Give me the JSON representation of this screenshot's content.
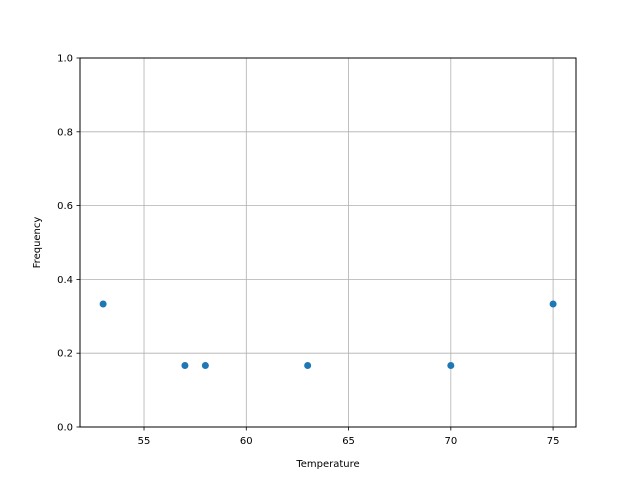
{
  "chart_data": {
    "type": "scatter",
    "title": "",
    "xlabel": "Temperature",
    "ylabel": "Frequency",
    "xlim": [
      51.87,
      76.12
    ],
    "ylim": [
      0,
      1
    ],
    "xticks": [
      55,
      60,
      65,
      70,
      75
    ],
    "xtick_labels": [
      "55",
      "60",
      "65",
      "70",
      "75"
    ],
    "yticks": [
      0,
      0.2,
      0.4,
      0.6,
      0.8,
      1.0
    ],
    "ytick_labels": [
      "0.0",
      "0.2",
      "0.4",
      "0.6",
      "0.8",
      "1.0"
    ],
    "grid": true,
    "color": "#1f77b4",
    "x": [
      53,
      57,
      58,
      63,
      70,
      75
    ],
    "y": [
      0.3333,
      0.1667,
      0.1667,
      0.1667,
      0.1667,
      0.3333
    ]
  }
}
